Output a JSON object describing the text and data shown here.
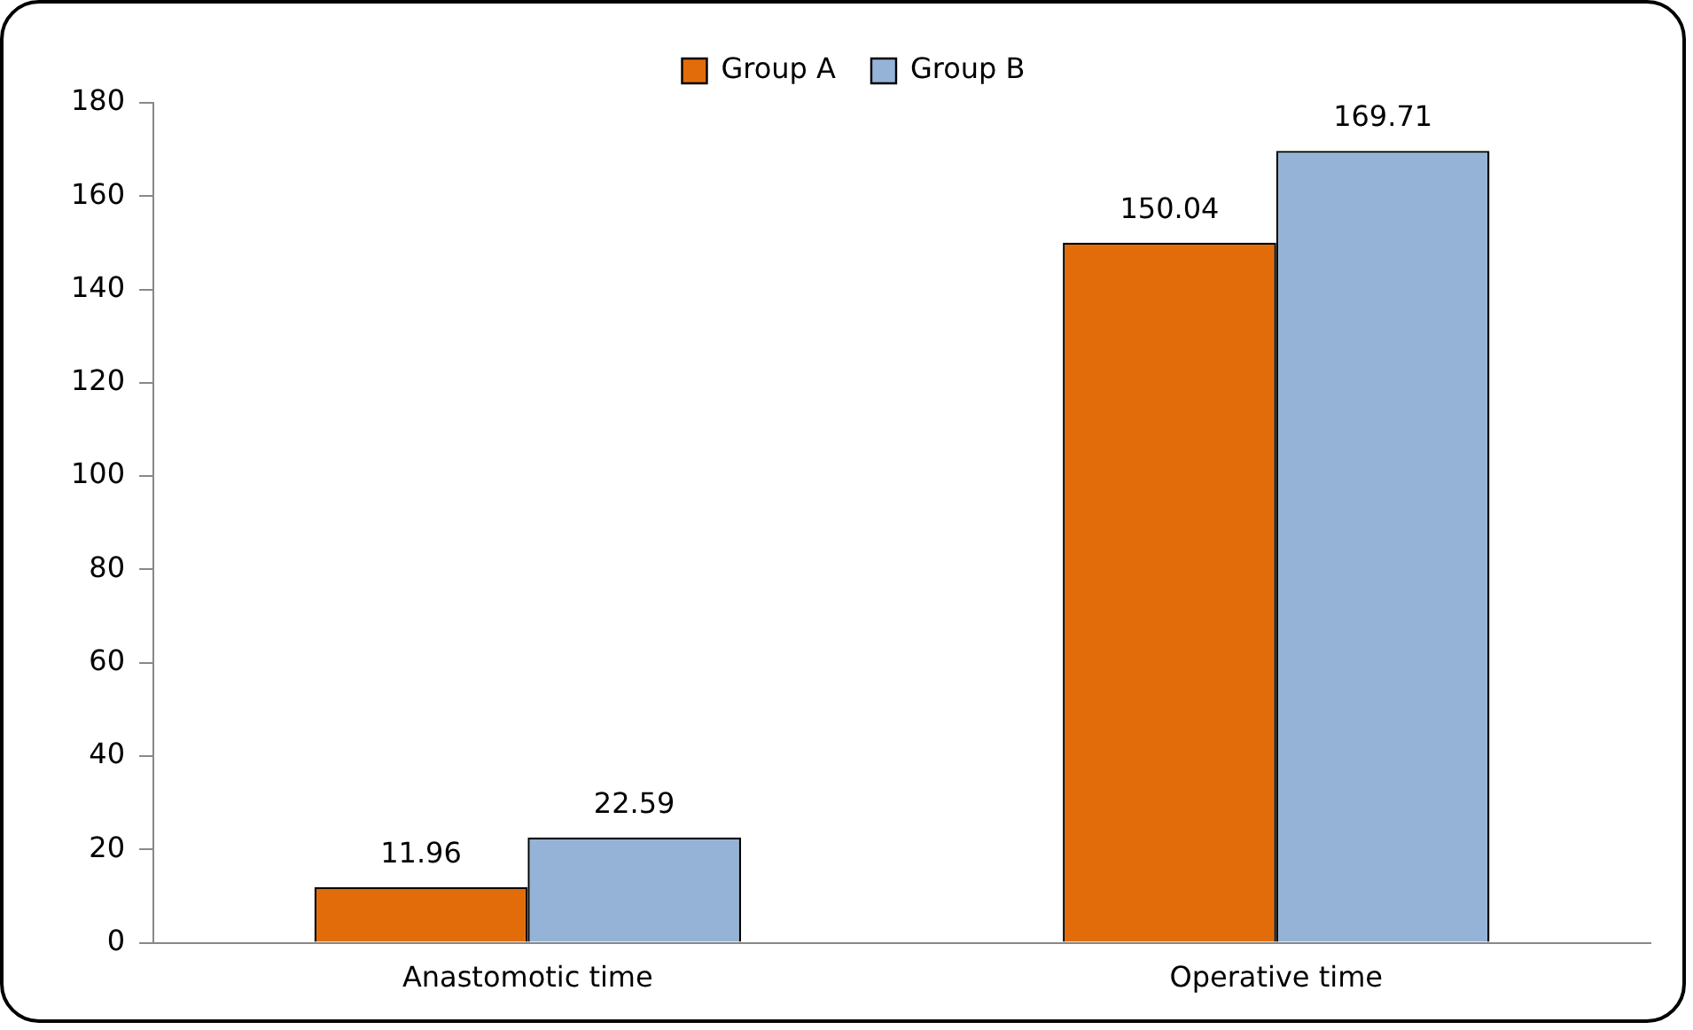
{
  "chart_data": {
    "type": "bar",
    "categories": [
      "Anastomotic time",
      "Operative time"
    ],
    "series": [
      {
        "name": "Group A",
        "color": "#e36c0a",
        "values": [
          11.96,
          150.04
        ]
      },
      {
        "name": "Group B",
        "color": "#95b3d7",
        "values": [
          22.59,
          169.71
        ]
      }
    ],
    "ylim": [
      0,
      180
    ],
    "yticks": [
      0,
      20,
      40,
      60,
      80,
      100,
      120,
      140,
      160,
      180
    ],
    "grid": false,
    "legend": "top",
    "data_labels": true
  }
}
